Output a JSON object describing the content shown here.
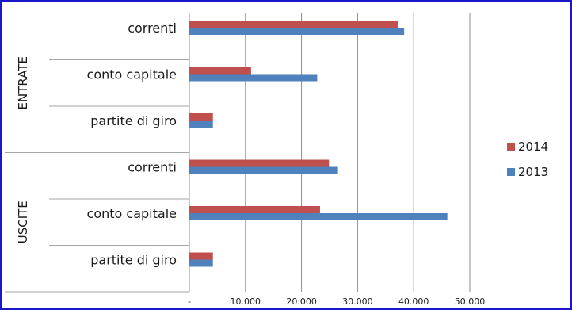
{
  "chart_data": {
    "type": "bar",
    "orientation": "horizontal",
    "groups": [
      {
        "label": "ENTRATE",
        "categories": [
          "correnti",
          "conto capitale",
          "partite di giro"
        ]
      },
      {
        "label": "USCITE",
        "categories": [
          "correnti",
          "conto capitale",
          "partite di giro"
        ]
      }
    ],
    "series": [
      {
        "name": "2014",
        "color": "#c0504d",
        "values": [
          37200,
          11000,
          4200,
          24900,
          23300,
          4200
        ]
      },
      {
        "name": "2013",
        "color": "#4f81bd",
        "values": [
          38300,
          22800,
          4200,
          26500,
          46000,
          4200
        ]
      }
    ],
    "xlim": [
      0,
      50000
    ],
    "xticks": [
      0,
      10000,
      20000,
      30000,
      40000,
      50000
    ],
    "xtick_labels": [
      "-",
      "10.000",
      "20.000",
      "30.000",
      "40.000",
      "50.000"
    ],
    "grid": true,
    "legend_position": "right"
  }
}
